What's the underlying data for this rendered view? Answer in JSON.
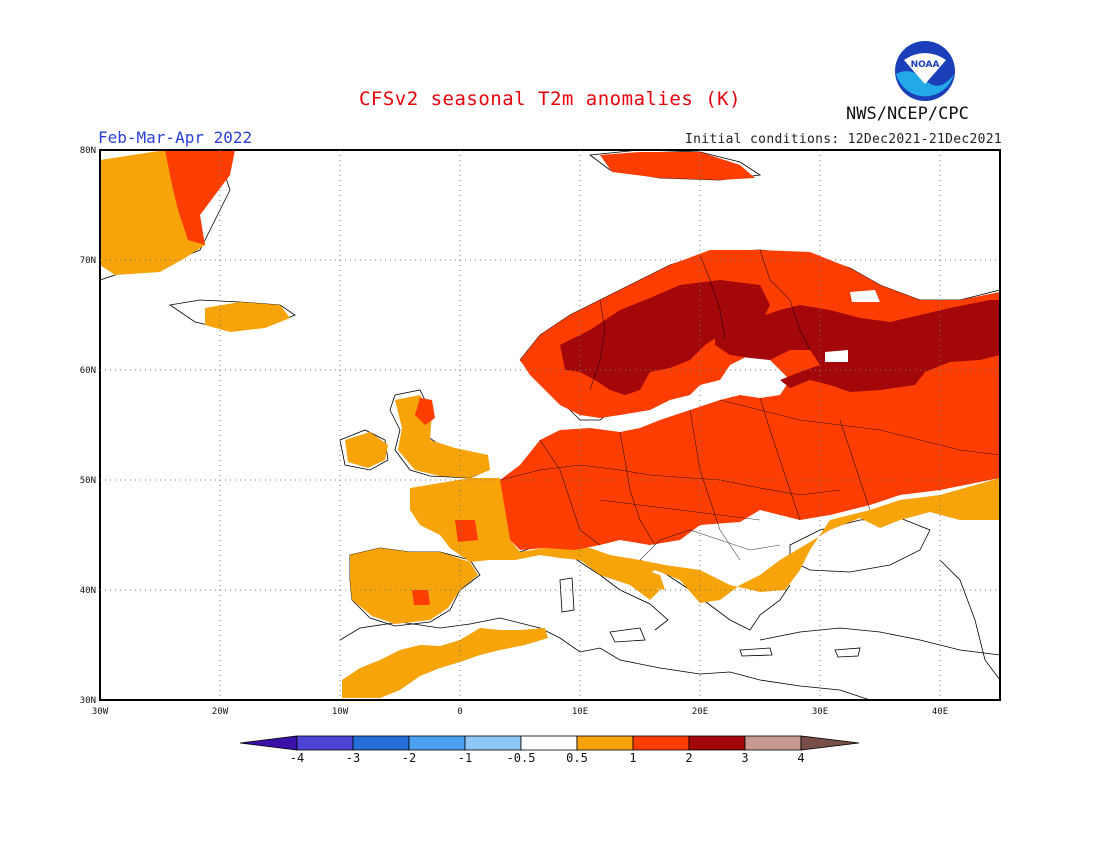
{
  "header": {
    "title": "CFSv2 seasonal T2m anomalies (K)",
    "period": "Feb-Mar-Apr 2022",
    "initial_conditions": "Initial conditions: 12Dec2021-21Dec2021",
    "agency": "NWS/NCEP/CPC",
    "logo_text": "NOAA"
  },
  "map": {
    "lon_ticks": [
      "30W",
      "20W",
      "10W",
      "0",
      "10E",
      "20E",
      "30E",
      "40E"
    ],
    "lat_ticks": [
      "30N",
      "40N",
      "50N",
      "60N",
      "70N",
      "80N"
    ],
    "extent": {
      "lon_min": -30,
      "lon_max": 45,
      "lat_min": 30,
      "lat_max": 80
    },
    "gridlines": "dotted"
  },
  "colorbar": {
    "labels": [
      "-4",
      "-3",
      "-2",
      "-1",
      "-0.5",
      "0.5",
      "1",
      "2",
      "3",
      "4"
    ],
    "colors": [
      "#3a10a8",
      "#4d44d6",
      "#2570d8",
      "#4ba0f0",
      "#8ec6f5",
      "#ffffff",
      "#f7a30a",
      "#fd3d02",
      "#a3070a",
      "#c7998e",
      "#7a4d48"
    ]
  },
  "legend_colors": {
    "anom_05_1": "#f7a30a",
    "anom_1_2": "#fd3d02",
    "anom_2_3": "#a3070a"
  }
}
